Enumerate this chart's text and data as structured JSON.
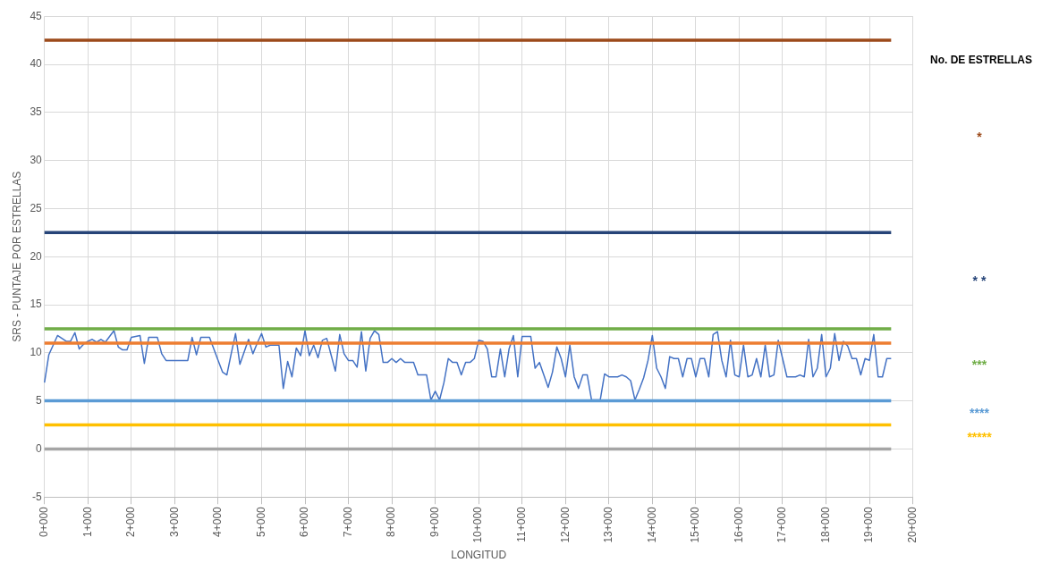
{
  "chart_data": {
    "type": "line",
    "xlabel": "LONGITUD",
    "ylabel": "SRS - PUNTAJE POR ESTRELLAS",
    "grid": true,
    "marker": "none",
    "line_style": "solid",
    "annotations": [
      "No. DE ESTRELLAS"
    ],
    "categories": [
      "0+000",
      null,
      null,
      null,
      null,
      null,
      null,
      null,
      null,
      null,
      "1+000",
      null,
      null,
      null,
      null,
      null,
      null,
      null,
      null,
      null,
      "2+000",
      null,
      null,
      null,
      null,
      null,
      null,
      null,
      null,
      null,
      "3+000",
      null,
      null,
      null,
      null,
      null,
      null,
      null,
      null,
      null,
      "4+000",
      null,
      null,
      null,
      null,
      null,
      null,
      null,
      null,
      null,
      "5+000",
      null,
      null,
      null,
      null,
      null,
      null,
      null,
      null,
      null,
      "6+000",
      null,
      null,
      null,
      null,
      null,
      null,
      null,
      null,
      null,
      "7+000",
      null,
      null,
      null,
      null,
      null,
      null,
      null,
      null,
      null,
      "8+000",
      null,
      null,
      null,
      null,
      null,
      null,
      null,
      null,
      null,
      "9+000",
      null,
      null,
      null,
      null,
      null,
      null,
      null,
      null,
      null,
      "10+000",
      null,
      null,
      null,
      null,
      null,
      null,
      null,
      null,
      null,
      "11+000",
      null,
      null,
      null,
      null,
      null,
      null,
      null,
      null,
      null,
      "12+000",
      null,
      null,
      null,
      null,
      null,
      null,
      null,
      null,
      null,
      "13+000",
      null,
      null,
      null,
      null,
      null,
      null,
      null,
      null,
      null,
      "14+000",
      null,
      null,
      null,
      null,
      null,
      null,
      null,
      null,
      null,
      "15+000",
      null,
      null,
      null,
      null,
      null,
      null,
      null,
      null,
      null,
      "16+000",
      null,
      null,
      null,
      null,
      null,
      null,
      null,
      null,
      null,
      "17+000",
      null,
      null,
      null,
      null,
      null,
      null,
      null,
      null,
      null,
      "18+000",
      null,
      null,
      null,
      null,
      null,
      null,
      null,
      null,
      null,
      "19+000",
      null,
      null,
      null,
      null,
      null,
      null,
      null,
      null,
      null,
      "20+000"
    ],
    "ylim": [
      -5,
      45
    ],
    "yticks": [
      -5,
      0,
      5,
      10,
      15,
      20,
      25,
      30,
      35,
      40,
      45
    ],
    "series": [
      {
        "color": "#4472c4",
        "values": [
          6.9,
          9.8,
          10.8,
          11.8,
          11.5,
          11.2,
          11.2,
          12.1,
          10.4,
          10.9,
          11.2,
          11.4,
          11.1,
          11.4,
          11.1,
          11.7,
          12.3,
          10.6,
          10.3,
          10.3,
          11.6,
          11.7,
          11.8,
          8.9,
          11.6,
          11.6,
          11.6,
          9.9,
          9.2,
          9.2,
          9.2,
          9.2,
          9.2,
          9.2,
          11.6,
          9.8,
          11.6,
          11.6,
          11.6,
          10.4,
          9.2,
          8.0,
          7.7,
          9.9,
          12.0,
          8.8,
          10.1,
          11.4,
          9.9,
          11.0,
          12.0,
          10.6,
          10.8,
          10.8,
          10.8,
          6.3,
          9.1,
          7.5,
          10.5,
          9.7,
          12.3,
          9.7,
          10.8,
          9.5,
          11.3,
          11.5,
          9.8,
          8.1,
          11.9,
          9.9,
          9.2,
          9.2,
          8.5,
          12.2,
          8.1,
          11.5,
          12.3,
          11.9,
          9.0,
          9.0,
          9.4,
          9.0,
          9.4,
          9.0,
          9.0,
          9.0,
          7.7,
          7.7,
          7.7,
          5.1,
          6.0,
          5.1,
          6.9,
          9.4,
          9.0,
          9.0,
          7.7,
          9.0,
          9.0,
          9.4,
          11.3,
          11.2,
          10.4,
          7.5,
          7.5,
          10.4,
          7.5,
          10.4,
          11.8,
          7.5,
          11.7,
          11.7,
          11.7,
          8.4,
          9.0,
          7.7,
          6.4,
          8.0,
          10.6,
          9.4,
          7.5,
          10.8,
          7.5,
          6.3,
          7.7,
          7.7,
          5.1,
          5.1,
          5.1,
          7.8,
          7.5,
          7.5,
          7.5,
          7.7,
          7.5,
          7.1,
          5.1,
          6.2,
          7.4,
          9.2,
          11.8,
          8.4,
          7.5,
          6.3,
          9.6,
          9.4,
          9.4,
          7.5,
          9.4,
          9.4,
          7.5,
          9.4,
          9.4,
          7.5,
          11.9,
          12.2,
          9.2,
          7.5,
          11.3,
          7.7,
          7.5,
          10.8,
          7.5,
          7.7,
          9.4,
          7.5,
          10.8,
          7.5,
          7.7,
          11.3,
          9.4,
          7.5,
          7.5,
          7.5,
          7.7,
          7.5,
          11.4,
          7.5,
          8.4,
          11.9,
          7.5,
          8.4,
          12.0,
          9.2,
          11.2,
          10.7,
          9.4,
          9.4,
          7.7,
          9.4,
          9.2,
          11.9,
          7.5,
          7.5,
          9.4,
          9.4,
          null,
          null,
          null,
          null,
          null
        ]
      }
    ],
    "ref_lines": [
      {
        "axis": "y",
        "value": 42.5,
        "label": "*",
        "color": "#9c4a1a"
      },
      {
        "axis": "y",
        "value": 22.5,
        "label": "* *",
        "color": "#264478"
      },
      {
        "axis": "y",
        "value": 12.5,
        "label": "***",
        "color": "#70ad47"
      },
      {
        "axis": "y",
        "value": 11,
        "color": "#ed7d31"
      },
      {
        "axis": "y",
        "value": 5,
        "label": "****",
        "color": "#5b9bd5"
      },
      {
        "axis": "y",
        "value": 2.5,
        "label": "*****",
        "color": "#ffc000"
      },
      {
        "axis": "y",
        "value": 0,
        "color": "#a5a5a5"
      }
    ]
  }
}
